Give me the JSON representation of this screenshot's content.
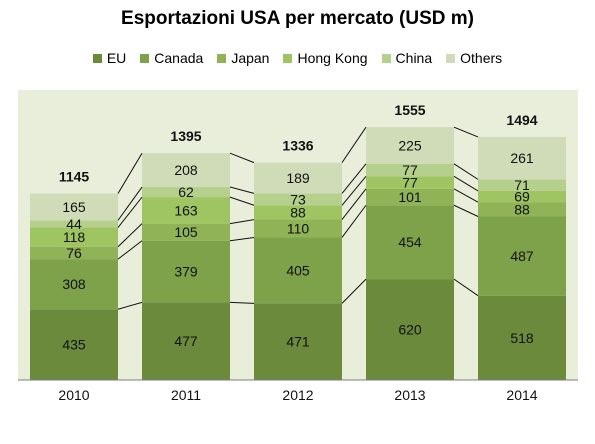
{
  "chart_data": {
    "type": "bar",
    "stacked": true,
    "title": "Esportazioni USA per mercato (USD m)",
    "categories": [
      "2010",
      "2011",
      "2012",
      "2013",
      "2014"
    ],
    "series": [
      {
        "name": "EU",
        "color": "#6b8a3c",
        "values": [
          435,
          477,
          471,
          620,
          518
        ]
      },
      {
        "name": "Canada",
        "color": "#7ea24a",
        "values": [
          308,
          379,
          405,
          454,
          487
        ]
      },
      {
        "name": "Japan",
        "color": "#8fb356",
        "values": [
          76,
          105,
          110,
          101,
          88
        ]
      },
      {
        "name": "Hong Kong",
        "color": "#9fc462",
        "values": [
          118,
          163,
          88,
          77,
          69
        ]
      },
      {
        "name": "China",
        "color": "#b5cf8d",
        "values": [
          44,
          62,
          73,
          77,
          71
        ]
      },
      {
        "name": "Others",
        "color": "#cfdcb7",
        "values": [
          165,
          208,
          189,
          225,
          261
        ]
      }
    ],
    "totals": [
      1145,
      1395,
      1336,
      1555,
      1494
    ],
    "ylim": [
      0,
      1750
    ],
    "legend_position": "top",
    "plot_background": "#e9eedb",
    "grid": false
  }
}
